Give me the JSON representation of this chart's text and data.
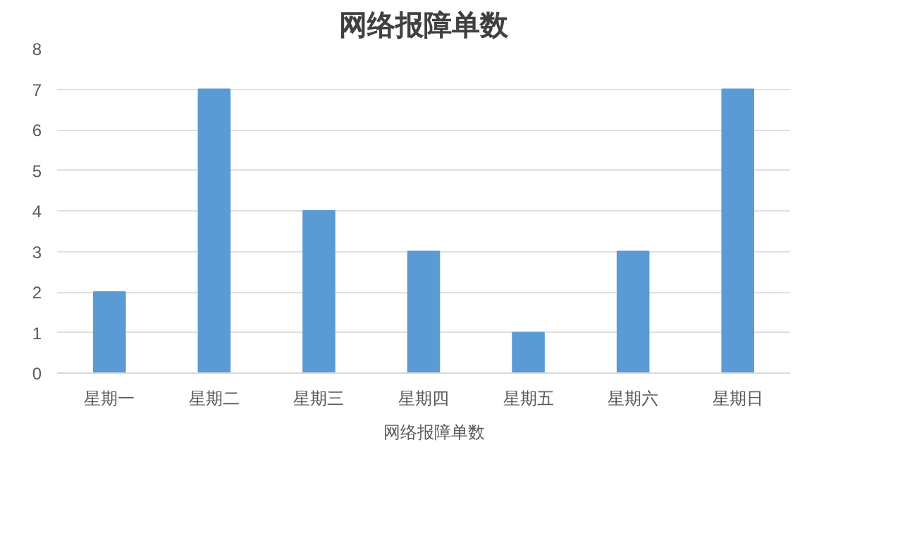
{
  "chart_data": {
    "type": "bar",
    "title": "网络报障单数",
    "categories": [
      "星期一",
      "星期二",
      "星期三",
      "星期四",
      "星期五",
      "星期六",
      "星期日"
    ],
    "series": [
      {
        "name": "网络报障单数",
        "color": "#5b9bd5",
        "values": [
          2,
          7,
          4,
          3,
          1,
          3,
          7
        ]
      }
    ],
    "ylim": [
      0,
      8
    ],
    "yticks": [
      0,
      1,
      2,
      3,
      4,
      5,
      6,
      7,
      8
    ],
    "grid": "y",
    "legend": "bottom"
  }
}
